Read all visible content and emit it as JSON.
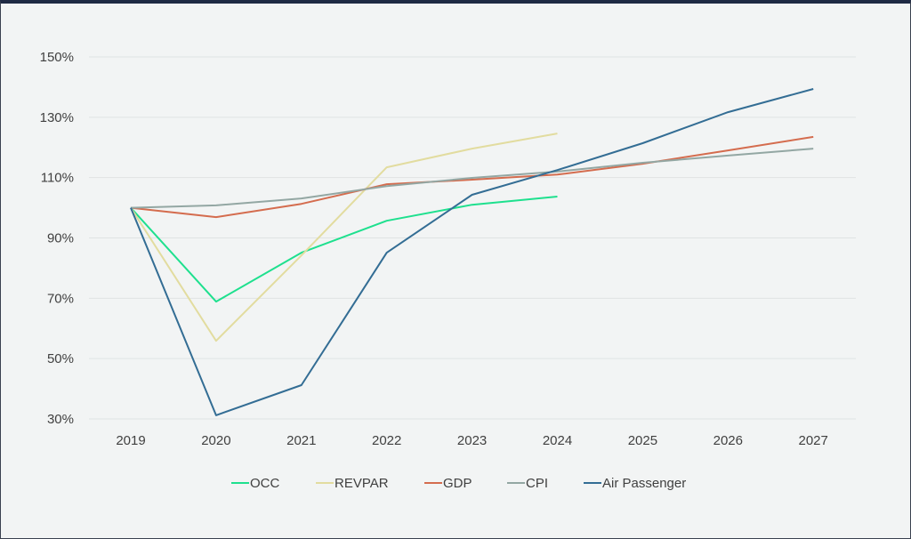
{
  "chart_data": {
    "type": "line",
    "title": "",
    "xlabel": "",
    "ylabel": "",
    "x": [
      "2019",
      "2020",
      "2021",
      "2022",
      "2023",
      "2024",
      "2025",
      "2026",
      "2027"
    ],
    "ylim": [
      30,
      150
    ],
    "yticks": [
      30,
      50,
      70,
      90,
      110,
      130,
      150
    ],
    "ytick_labels": [
      "30%",
      "50%",
      "70%",
      "90%",
      "110%",
      "130%",
      "150%"
    ],
    "grid": true,
    "legend_position": "bottom",
    "series": [
      {
        "name": "OCC",
        "color": "#1ee08e",
        "values": [
          100,
          68.9,
          85.1,
          95.7,
          101,
          103.7,
          null,
          null,
          null
        ]
      },
      {
        "name": "REVPAR",
        "color": "#e2dc9f",
        "values": [
          100,
          55.9,
          84.2,
          113.4,
          119.6,
          124.6,
          null,
          null,
          null
        ]
      },
      {
        "name": "GDP",
        "color": "#d46c4e",
        "values": [
          100,
          96.9,
          101.3,
          107.8,
          109.3,
          111,
          114.6,
          119,
          123.5
        ]
      },
      {
        "name": "CPI",
        "color": "#93a7a3",
        "values": [
          100,
          100.8,
          103.1,
          107.2,
          109.9,
          112,
          114.9,
          117.3,
          119.6
        ]
      },
      {
        "name": "Air Passenger",
        "color": "#336d94",
        "values": [
          100,
          31.2,
          41.2,
          85.1,
          104.3,
          112.5,
          121.4,
          131.7,
          139.4
        ]
      }
    ]
  }
}
